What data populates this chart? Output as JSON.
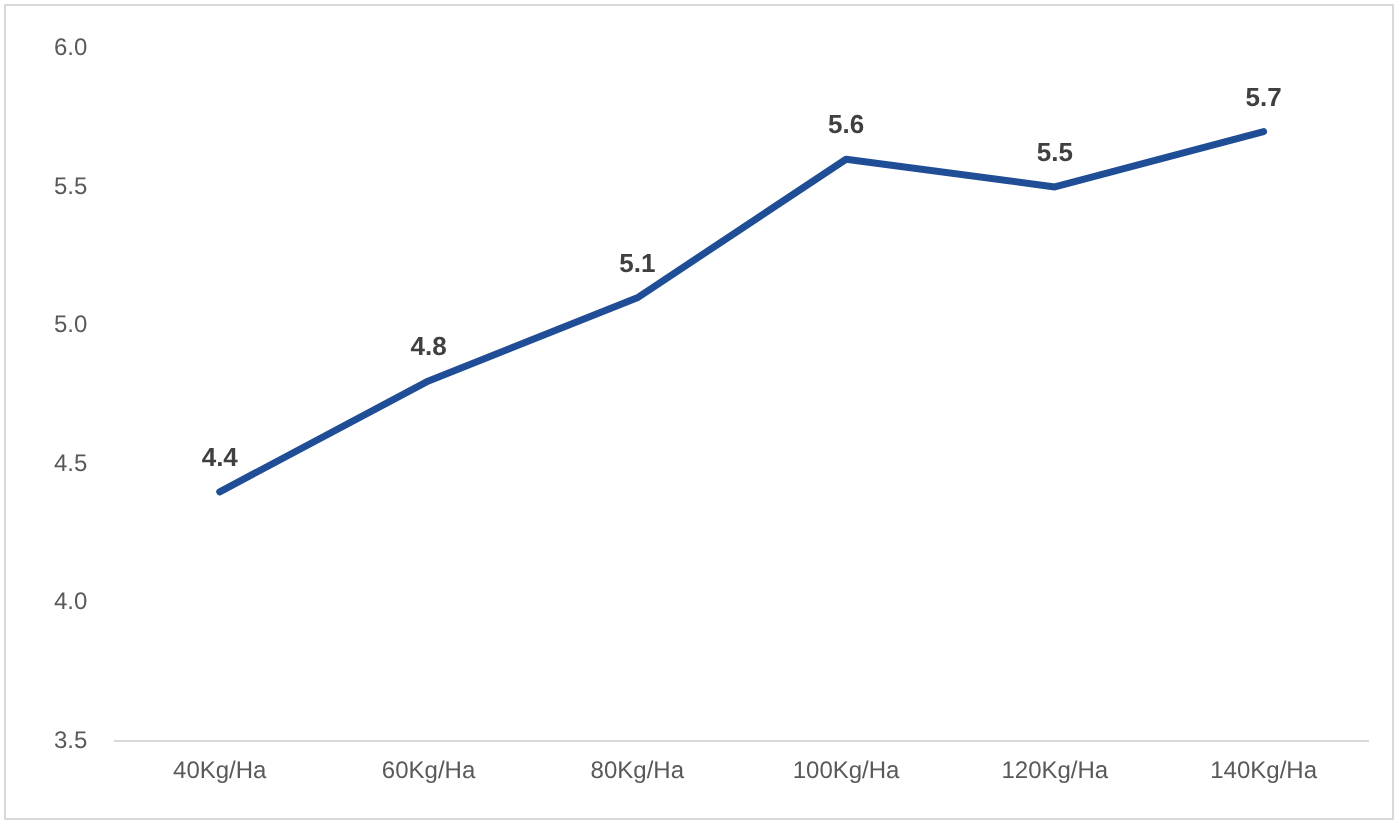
{
  "chart_data": {
    "type": "line",
    "categories": [
      "40Kg/Ha",
      "60Kg/Ha",
      "80Kg/Ha",
      "100Kg/Ha",
      "120Kg/Ha",
      "140Kg/Ha"
    ],
    "series": [
      {
        "color": "#1f4e96",
        "values": [
          4.4,
          4.8,
          5.1,
          5.6,
          5.5,
          5.7
        ]
      }
    ],
    "ylim": [
      3.5,
      6.0
    ],
    "yticks": [
      3.5,
      {
        "value": 4,
        "label": "4.0"
      },
      4.5,
      {
        "value": 5,
        "label": "5.0"
      },
      5.5,
      {
        "value": 6,
        "label": "6.0"
      }
    ],
    "data_labels": true,
    "marker": "none",
    "line_style": "solid",
    "legend": false,
    "grid": false
  }
}
